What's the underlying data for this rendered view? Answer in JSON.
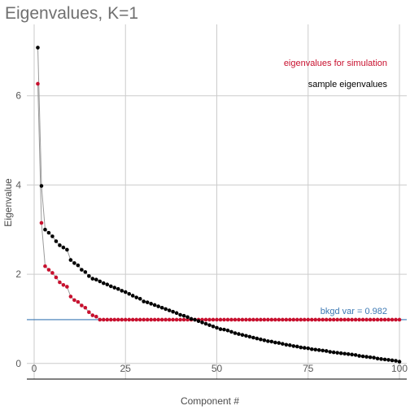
{
  "chart_data": {
    "type": "scatter",
    "title": "Eigenvalues, K=1",
    "xlabel": "Component #",
    "ylabel": "Eigenvalue",
    "xlim": [
      -2,
      102
    ],
    "ylim": [
      -0.35,
      7.6
    ],
    "x_ticks": [
      0,
      25,
      50,
      75,
      100
    ],
    "y_ticks": [
      0,
      2,
      4,
      6
    ],
    "grid": true,
    "reference_line": {
      "y": 0.982,
      "label": "bkgd var = 0.982",
      "color": "#3b78b3"
    },
    "annotations": [
      {
        "text": "eigenvalues for simulation",
        "color": "#c8102e"
      },
      {
        "text": "sample eigenvalues",
        "color": "#000000"
      }
    ],
    "colors": {
      "simulation": "#c8102e",
      "sample": "#000000",
      "connector": "#9a9a9a",
      "grid": "#cccccc"
    },
    "series": [
      {
        "key": "sample",
        "style": "points-with-line",
        "x": [
          1,
          2,
          3,
          4,
          5,
          6,
          7,
          8,
          9,
          10,
          11,
          12,
          13,
          14,
          15,
          16,
          17,
          18,
          19,
          20,
          21,
          22,
          23,
          24,
          25,
          26,
          27,
          28,
          29,
          30,
          31,
          32,
          33,
          34,
          35,
          36,
          37,
          38,
          39,
          40,
          41,
          42,
          43,
          44,
          45,
          46,
          47,
          48,
          49,
          50,
          51,
          52,
          53,
          54,
          55,
          56,
          57,
          58,
          59,
          60,
          61,
          62,
          63,
          64,
          65,
          66,
          67,
          68,
          69,
          70,
          71,
          72,
          73,
          74,
          75,
          76,
          77,
          78,
          79,
          80,
          81,
          82,
          83,
          84,
          85,
          86,
          87,
          88,
          89,
          90,
          91,
          92,
          93,
          94,
          95,
          96,
          97,
          98,
          99,
          100
        ],
        "values": [
          7.08,
          3.98,
          3.0,
          2.93,
          2.85,
          2.74,
          2.65,
          2.6,
          2.55,
          2.32,
          2.25,
          2.2,
          2.1,
          2.05,
          1.96,
          1.9,
          1.88,
          1.84,
          1.8,
          1.77,
          1.73,
          1.7,
          1.67,
          1.63,
          1.6,
          1.56,
          1.52,
          1.48,
          1.45,
          1.39,
          1.37,
          1.34,
          1.31,
          1.28,
          1.25,
          1.22,
          1.19,
          1.16,
          1.13,
          1.09,
          1.07,
          1.04,
          1.0,
          0.98,
          0.95,
          0.92,
          0.89,
          0.86,
          0.83,
          0.8,
          0.77,
          0.76,
          0.74,
          0.71,
          0.68,
          0.66,
          0.64,
          0.62,
          0.6,
          0.58,
          0.56,
          0.54,
          0.52,
          0.5,
          0.49,
          0.47,
          0.46,
          0.44,
          0.42,
          0.41,
          0.39,
          0.38,
          0.36,
          0.35,
          0.34,
          0.32,
          0.31,
          0.3,
          0.29,
          0.28,
          0.26,
          0.25,
          0.24,
          0.23,
          0.22,
          0.21,
          0.2,
          0.19,
          0.17,
          0.16,
          0.15,
          0.14,
          0.13,
          0.11,
          0.1,
          0.09,
          0.08,
          0.07,
          0.06,
          0.04
        ]
      },
      {
        "key": "simulation",
        "style": "points-with-line",
        "x": [
          1,
          2,
          3,
          4,
          5,
          6,
          7,
          8,
          9,
          10,
          11,
          12,
          13,
          14,
          15,
          16,
          17,
          18,
          19,
          20,
          21,
          22,
          23,
          24,
          25,
          26,
          27,
          28,
          29,
          30,
          31,
          32,
          33,
          34,
          35,
          36,
          37,
          38,
          39,
          40,
          41,
          42,
          43,
          44,
          45,
          46,
          47,
          48,
          49,
          50,
          51,
          52,
          53,
          54,
          55,
          56,
          57,
          58,
          59,
          60,
          61,
          62,
          63,
          64,
          65,
          66,
          67,
          68,
          69,
          70,
          71,
          72,
          73,
          74,
          75,
          76,
          77,
          78,
          79,
          80,
          81,
          82,
          83,
          84,
          85,
          86,
          87,
          88,
          89,
          90,
          91,
          92,
          93,
          94,
          95,
          96,
          97,
          98,
          99,
          100
        ],
        "values": [
          6.27,
          3.15,
          2.18,
          2.1,
          2.03,
          1.93,
          1.82,
          1.76,
          1.72,
          1.5,
          1.42,
          1.38,
          1.3,
          1.25,
          1.15,
          1.08,
          1.05,
          0.982,
          0.982,
          0.982,
          0.982,
          0.982,
          0.982,
          0.982,
          0.982,
          0.982,
          0.982,
          0.982,
          0.982,
          0.982,
          0.982,
          0.982,
          0.982,
          0.982,
          0.982,
          0.982,
          0.982,
          0.982,
          0.982,
          0.982,
          0.982,
          0.982,
          0.982,
          0.982,
          0.982,
          0.982,
          0.982,
          0.982,
          0.982,
          0.982,
          0.982,
          0.982,
          0.982,
          0.982,
          0.982,
          0.982,
          0.982,
          0.982,
          0.982,
          0.982,
          0.982,
          0.982,
          0.982,
          0.982,
          0.982,
          0.982,
          0.982,
          0.982,
          0.982,
          0.982,
          0.982,
          0.982,
          0.982,
          0.982,
          0.982,
          0.982,
          0.982,
          0.982,
          0.982,
          0.982,
          0.982,
          0.982,
          0.982,
          0.982,
          0.982,
          0.982,
          0.982,
          0.982,
          0.982,
          0.982,
          0.982,
          0.982,
          0.982,
          0.982,
          0.982,
          0.982,
          0.982,
          0.982,
          0.982,
          0.982
        ]
      }
    ]
  }
}
